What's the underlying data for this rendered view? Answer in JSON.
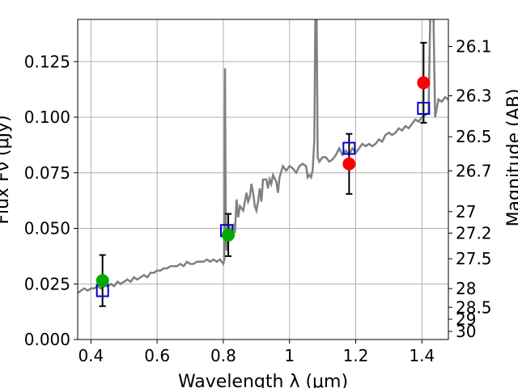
{
  "chart_data": {
    "type": "scatter",
    "xlabel": "Wavelength  λ (μm)",
    "ylabel_left": "Flux Fν (μJy)",
    "ylabel_right": "Magnitude (AB)",
    "xlim": [
      0.36,
      1.48
    ],
    "ylim": [
      0,
      0.144
    ],
    "grid": true,
    "x_ticks": [
      {
        "value": 0.4,
        "label": "0.4"
      },
      {
        "value": 0.6,
        "label": "0.6"
      },
      {
        "value": 0.8,
        "label": "0.8"
      },
      {
        "value": 1.0,
        "label": "1"
      },
      {
        "value": 1.2,
        "label": "1.2"
      },
      {
        "value": 1.4,
        "label": "1.4"
      }
    ],
    "y_ticks": [
      {
        "value": 0.0,
        "label": "0.000"
      },
      {
        "value": 0.025,
        "label": "0.025"
      },
      {
        "value": 0.05,
        "label": "0.050"
      },
      {
        "value": 0.075,
        "label": "0.075"
      },
      {
        "value": 0.1,
        "label": "0.100"
      },
      {
        "value": 0.125,
        "label": "0.125"
      }
    ],
    "right_ticks": [
      {
        "mag": 26.1,
        "label": "26.1"
      },
      {
        "mag": 26.3,
        "label": "26.3"
      },
      {
        "mag": 26.5,
        "label": "26.5"
      },
      {
        "mag": 26.7,
        "label": "26.7"
      },
      {
        "mag": 27.0,
        "label": "27"
      },
      {
        "mag": 27.2,
        "label": "27.2"
      },
      {
        "mag": 27.5,
        "label": "27.5"
      },
      {
        "mag": 28.0,
        "label": "28"
      },
      {
        "mag": 28.5,
        "label": "28.5"
      },
      {
        "mag": 29.0,
        "label": "29"
      },
      {
        "mag": 30.0,
        "label": "30"
      }
    ],
    "spectrum": {
      "color": "#808080",
      "points": [
        [
          0.36,
          0.021
        ],
        [
          0.37,
          0.022
        ],
        [
          0.38,
          0.023
        ],
        [
          0.39,
          0.022
        ],
        [
          0.4,
          0.023
        ],
        [
          0.41,
          0.023
        ],
        [
          0.42,
          0.024
        ],
        [
          0.43,
          0.023
        ],
        [
          0.44,
          0.024
        ],
        [
          0.45,
          0.024
        ],
        [
          0.46,
          0.025
        ],
        [
          0.47,
          0.024
        ],
        [
          0.48,
          0.026
        ],
        [
          0.49,
          0.025
        ],
        [
          0.5,
          0.026
        ],
        [
          0.51,
          0.027
        ],
        [
          0.52,
          0.026
        ],
        [
          0.53,
          0.028
        ],
        [
          0.54,
          0.027
        ],
        [
          0.55,
          0.028
        ],
        [
          0.56,
          0.029
        ],
        [
          0.57,
          0.028
        ],
        [
          0.58,
          0.03
        ],
        [
          0.59,
          0.03
        ],
        [
          0.6,
          0.031
        ],
        [
          0.61,
          0.031
        ],
        [
          0.62,
          0.032
        ],
        [
          0.63,
          0.032
        ],
        [
          0.64,
          0.033
        ],
        [
          0.65,
          0.033
        ],
        [
          0.66,
          0.033
        ],
        [
          0.67,
          0.034
        ],
        [
          0.68,
          0.033
        ],
        [
          0.69,
          0.035
        ],
        [
          0.7,
          0.034
        ],
        [
          0.71,
          0.034
        ],
        [
          0.72,
          0.035
        ],
        [
          0.73,
          0.035
        ],
        [
          0.74,
          0.035
        ],
        [
          0.75,
          0.036
        ],
        [
          0.76,
          0.035
        ],
        [
          0.77,
          0.036
        ],
        [
          0.78,
          0.035
        ],
        [
          0.79,
          0.036
        ],
        [
          0.8,
          0.034
        ],
        [
          0.803,
          0.036
        ],
        [
          0.805,
          0.122
        ],
        [
          0.807,
          0.06
        ],
        [
          0.81,
          0.04
        ],
        [
          0.815,
          0.048
        ],
        [
          0.82,
          0.05
        ],
        [
          0.825,
          0.046
        ],
        [
          0.83,
          0.052
        ],
        [
          0.835,
          0.048
        ],
        [
          0.84,
          0.063
        ],
        [
          0.845,
          0.055
        ],
        [
          0.85,
          0.06
        ],
        [
          0.86,
          0.058
        ],
        [
          0.87,
          0.066
        ],
        [
          0.875,
          0.062
        ],
        [
          0.88,
          0.064
        ],
        [
          0.885,
          0.07
        ],
        [
          0.89,
          0.066
        ],
        [
          0.895,
          0.06
        ],
        [
          0.9,
          0.058
        ],
        [
          0.905,
          0.062
        ],
        [
          0.91,
          0.068
        ],
        [
          0.915,
          0.062
        ],
        [
          0.92,
          0.072
        ],
        [
          0.93,
          0.072
        ],
        [
          0.935,
          0.068
        ],
        [
          0.94,
          0.072
        ],
        [
          0.945,
          0.07
        ],
        [
          0.95,
          0.074
        ],
        [
          0.96,
          0.071
        ],
        [
          0.965,
          0.066
        ],
        [
          0.97,
          0.073
        ],
        [
          0.98,
          0.078
        ],
        [
          0.99,
          0.076
        ],
        [
          1.0,
          0.078
        ],
        [
          1.01,
          0.077
        ],
        [
          1.02,
          0.075
        ],
        [
          1.03,
          0.078
        ],
        [
          1.04,
          0.079
        ],
        [
          1.05,
          0.078
        ],
        [
          1.055,
          0.073
        ],
        [
          1.06,
          0.074
        ],
        [
          1.065,
          0.073
        ],
        [
          1.07,
          0.076
        ],
        [
          1.075,
          0.09
        ],
        [
          1.078,
          0.145
        ],
        [
          1.082,
          0.145
        ],
        [
          1.085,
          0.082
        ],
        [
          1.09,
          0.08
        ],
        [
          1.1,
          0.082
        ],
        [
          1.11,
          0.082
        ],
        [
          1.12,
          0.08
        ],
        [
          1.13,
          0.081
        ],
        [
          1.14,
          0.083
        ],
        [
          1.15,
          0.086
        ],
        [
          1.16,
          0.083
        ],
        [
          1.17,
          0.085
        ],
        [
          1.18,
          0.083
        ],
        [
          1.19,
          0.086
        ],
        [
          1.2,
          0.084
        ],
        [
          1.21,
          0.086
        ],
        [
          1.22,
          0.088
        ],
        [
          1.23,
          0.087
        ],
        [
          1.24,
          0.088
        ],
        [
          1.25,
          0.087
        ],
        [
          1.26,
          0.088
        ],
        [
          1.27,
          0.09
        ],
        [
          1.28,
          0.089
        ],
        [
          1.29,
          0.092
        ],
        [
          1.3,
          0.093
        ],
        [
          1.31,
          0.092
        ],
        [
          1.32,
          0.093
        ],
        [
          1.33,
          0.095
        ],
        [
          1.34,
          0.094
        ],
        [
          1.35,
          0.096
        ],
        [
          1.36,
          0.095
        ],
        [
          1.37,
          0.097
        ],
        [
          1.38,
          0.099
        ],
        [
          1.39,
          0.098
        ],
        [
          1.4,
          0.1
        ],
        [
          1.41,
          0.101
        ],
        [
          1.42,
          0.102
        ],
        [
          1.425,
          0.145
        ],
        [
          1.435,
          0.145
        ],
        [
          1.44,
          0.1
        ],
        [
          1.45,
          0.108
        ],
        [
          1.46,
          0.107
        ],
        [
          1.47,
          0.109
        ],
        [
          1.48,
          0.108
        ]
      ]
    },
    "model_points": {
      "color": "#0000cc",
      "points": [
        {
          "x": 0.435,
          "y": 0.022
        },
        {
          "x": 0.81,
          "y": 0.049
        },
        {
          "x": 1.18,
          "y": 0.086
        },
        {
          "x": 1.405,
          "y": 0.104
        }
      ]
    },
    "observed": [
      {
        "x": 0.435,
        "y": 0.0265,
        "yerr_low": 0.0115,
        "yerr_high": 0.0115,
        "color": "#00aa00"
      },
      {
        "x": 0.815,
        "y": 0.047,
        "yerr_low": 0.0095,
        "yerr_high": 0.0095,
        "color": "#00aa00"
      },
      {
        "x": 1.18,
        "y": 0.079,
        "yerr_low": 0.0135,
        "yerr_high": 0.0135,
        "color": "#ff0000"
      },
      {
        "x": 1.405,
        "y": 0.1155,
        "yerr_low": 0.018,
        "yerr_high": 0.018,
        "color": "#ff0000"
      }
    ]
  }
}
